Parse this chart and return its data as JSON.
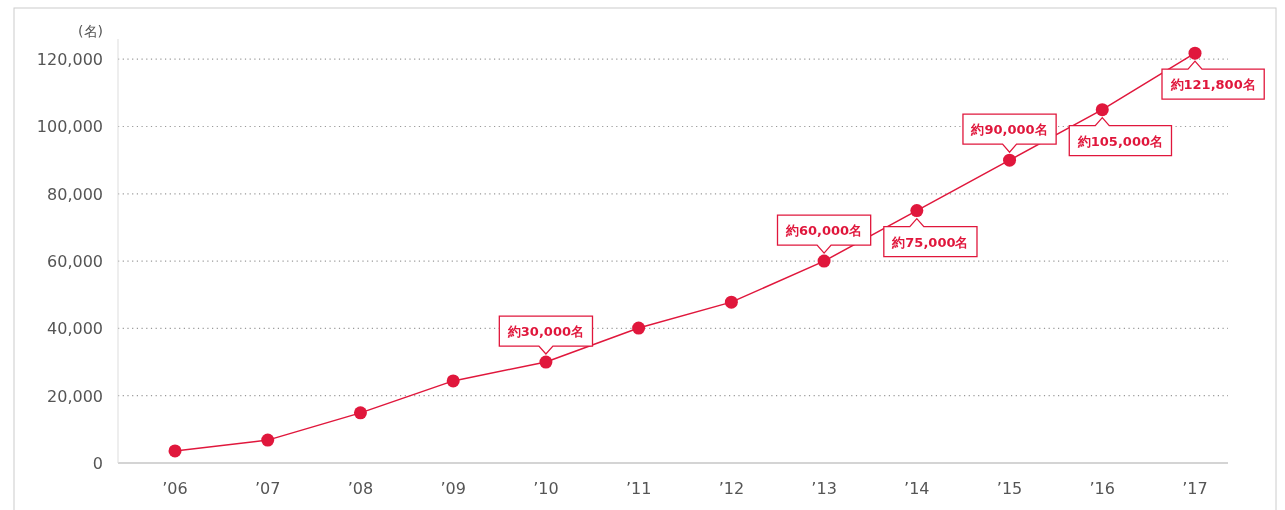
{
  "chart_data": {
    "type": "line",
    "ylabel": "(名)",
    "categories": [
      "’06",
      "’07",
      "’08",
      "’09",
      "’10",
      "’11",
      "’12",
      "’13",
      "’14",
      "’15",
      "’16",
      "’17"
    ],
    "series": [
      {
        "color": "#e0173c",
        "values": [
          3600,
          6800,
          14900,
          24400,
          30000,
          40100,
          47800,
          60000,
          75000,
          90000,
          105000,
          121800
        ],
        "value_labels": [
          null,
          null,
          null,
          null,
          "約30,000名",
          null,
          null,
          "約60,000名",
          "約75,000名",
          "約90,000名",
          "約105,000名",
          "約121,800名"
        ]
      }
    ],
    "ylim": [
      0,
      126000
    ],
    "yticks": [
      {
        "value": 0,
        "label": "0"
      },
      {
        "value": 20000,
        "label": "20,000"
      },
      {
        "value": 40000,
        "label": "40,000"
      },
      {
        "value": 60000,
        "label": "60,000"
      },
      {
        "value": 80000,
        "label": "80,000"
      },
      {
        "value": 100000,
        "label": "100,000"
      },
      {
        "value": 120000,
        "label": "120,000"
      }
    ],
    "grid": "y",
    "marker": "circle",
    "line_style": "solid"
  }
}
